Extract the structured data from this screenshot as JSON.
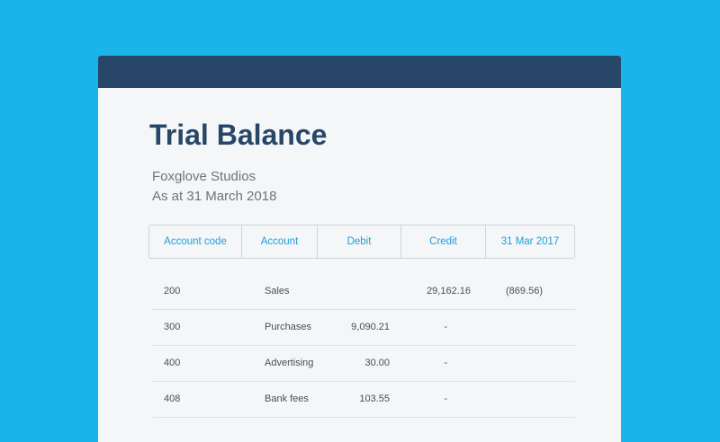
{
  "report": {
    "title": "Trial Balance",
    "company": "Foxglove Studios",
    "as_at": "As at 31 March 2018"
  },
  "columns": [
    "Account code",
    "Account",
    "Debit",
    "Credit",
    "31 Mar 2017"
  ],
  "rows": [
    {
      "code": "200",
      "account": "Sales",
      "debit": "",
      "credit": "29,162.16",
      "prior": "(869.56)"
    },
    {
      "code": "300",
      "account": "Purchases",
      "debit": "9,090.21",
      "credit": "-",
      "prior": ""
    },
    {
      "code": "400",
      "account": "Advertising",
      "debit": "30.00",
      "credit": "-",
      "prior": ""
    },
    {
      "code": "408",
      "account": "Bank fees",
      "debit": "103.55",
      "credit": "-",
      "prior": ""
    }
  ],
  "colors": {
    "background": "#19b4ea",
    "titlebar": "#284768",
    "accent": "#1c9fdc",
    "panel": "#f4f6f8"
  }
}
